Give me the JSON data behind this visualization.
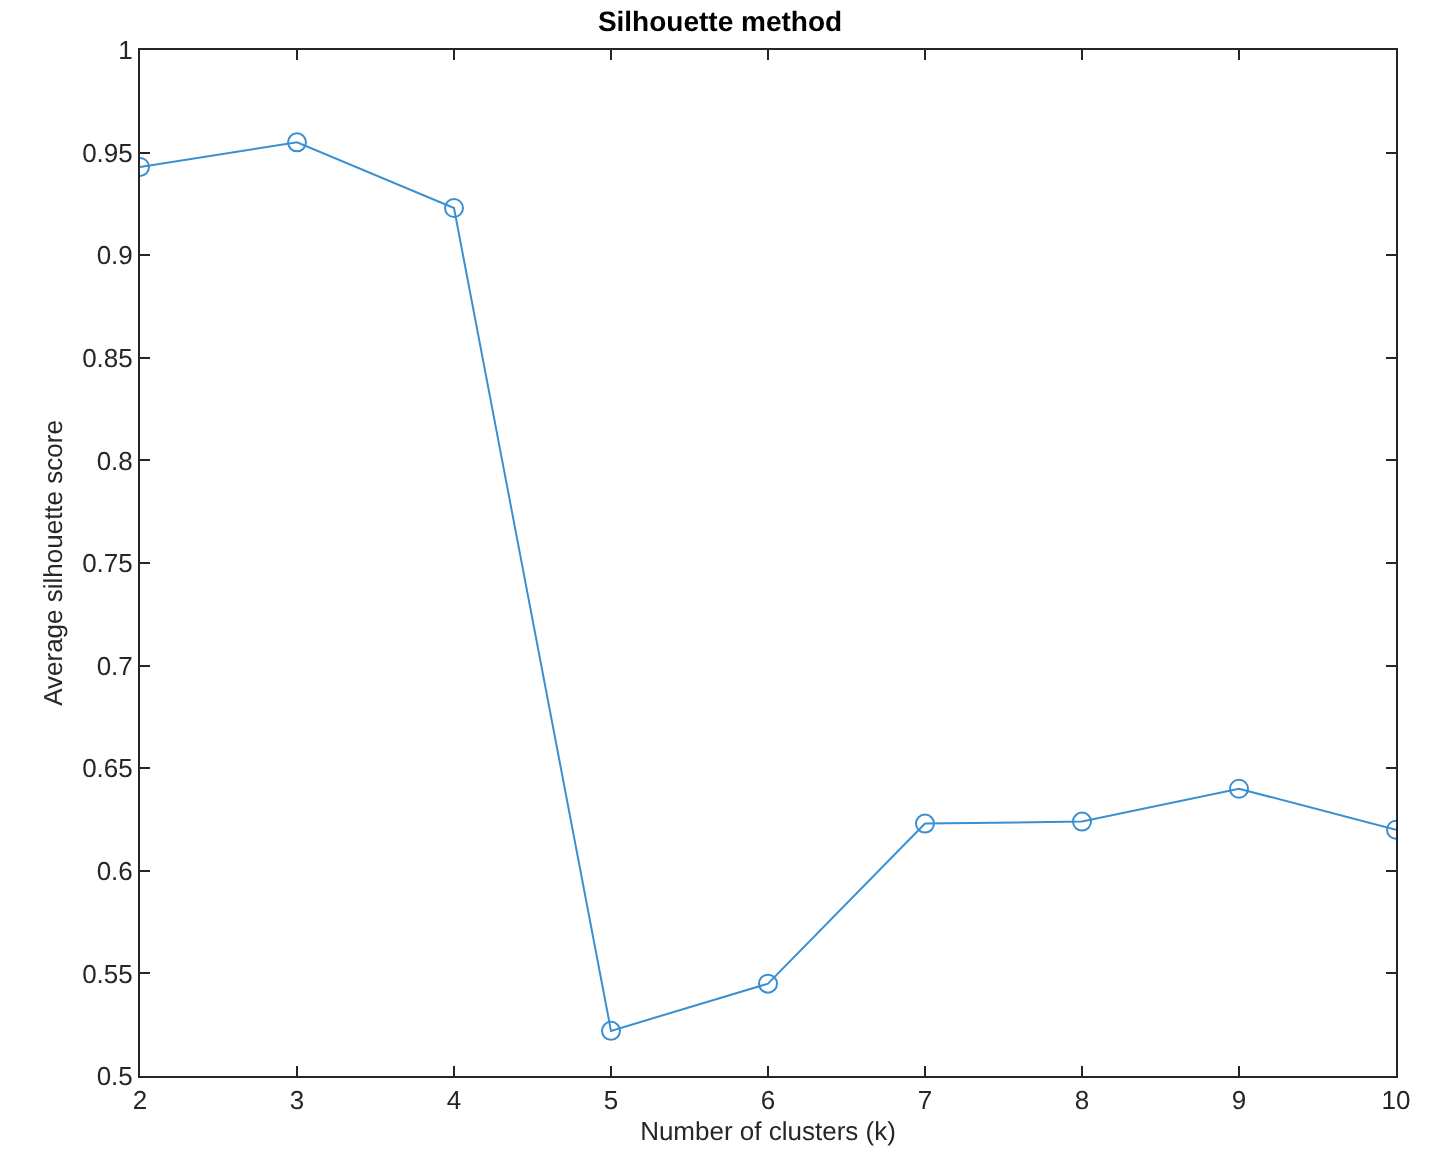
{
  "chart_data": {
    "type": "line",
    "title": "Silhouette method",
    "xlabel": "Number of clusters (k)",
    "ylabel": "Average silhouette score",
    "x": [
      2,
      3,
      4,
      5,
      6,
      7,
      8,
      9,
      10
    ],
    "series": [
      {
        "color": "#3a8fd0",
        "values": [
          0.943,
          0.955,
          0.923,
          0.522,
          0.545,
          0.623,
          0.624,
          0.64,
          0.62
        ]
      }
    ],
    "xlim": [
      2,
      10
    ],
    "xticks": [
      2,
      3,
      4,
      5,
      6,
      7,
      8,
      9,
      10
    ],
    "ylim": [
      0.5,
      1
    ],
    "yticks": [
      0.5,
      0.55,
      0.6,
      0.65,
      0.7,
      0.75,
      0.8,
      0.85,
      0.9,
      0.95,
      1
    ],
    "marker": "circle",
    "line_style": "solid"
  }
}
